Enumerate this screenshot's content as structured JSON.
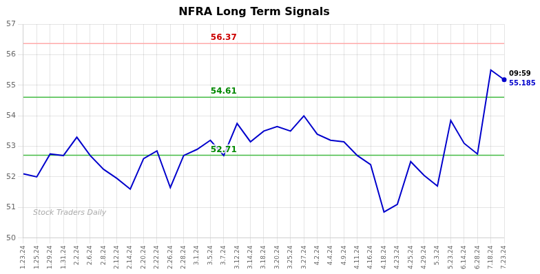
{
  "chart_data": {
    "type": "line",
    "title": "NFRA Long Term Signals",
    "categories": [
      "1.23.24",
      "1.25.24",
      "1.29.24",
      "1.31.24",
      "2.2.24",
      "2.6.24",
      "2.8.24",
      "2.12.24",
      "2.14.24",
      "2.20.24",
      "2.22.24",
      "2.26.24",
      "2.28.24",
      "3.1.24",
      "3.5.24",
      "3.7.24",
      "3.12.24",
      "3.14.24",
      "3.18.24",
      "3.20.24",
      "3.25.24",
      "3.27.24",
      "4.2.24",
      "4.4.24",
      "4.9.24",
      "4.11.24",
      "4.16.24",
      "4.18.24",
      "4.23.24",
      "4.25.24",
      "4.29.24",
      "5.3.24",
      "5.23.24",
      "6.14.24",
      "6.28.24",
      "7.18.24",
      "7.23.24"
    ],
    "values": [
      52.1,
      52.0,
      52.75,
      52.7,
      53.3,
      52.7,
      52.25,
      51.95,
      51.6,
      52.6,
      52.85,
      51.65,
      52.7,
      52.9,
      53.2,
      52.7,
      53.75,
      53.15,
      53.5,
      53.65,
      53.5,
      54.0,
      53.4,
      53.2,
      53.15,
      52.7,
      52.4,
      50.85,
      51.1,
      52.5,
      52.05,
      51.7,
      53.85,
      53.1,
      52.75,
      55.5,
      55.185
    ],
    "color": "#0000cc",
    "ylim": [
      50,
      57
    ],
    "yticks": [
      50,
      51,
      52,
      53,
      54,
      55,
      56,
      57
    ],
    "grid": true,
    "reference_lines": [
      {
        "value": 56.37,
        "label": "56.37",
        "color": "#ffaaaa",
        "label_color": "#cc0000",
        "x": "3.7.24"
      },
      {
        "value": 54.61,
        "label": "54.61",
        "color": "#44bb44",
        "label_color": "#008800",
        "x": "3.7.24"
      },
      {
        "value": 52.71,
        "label": "52.71",
        "color": "#44bb44",
        "label_color": "#008800",
        "x": "3.7.24"
      }
    ],
    "annotations": [
      {
        "text": "09:59",
        "x": "7.23.24",
        "y": 55.185,
        "color": "#000000"
      },
      {
        "text": "55.185",
        "x": "7.23.24",
        "y": 55.185,
        "color": "#0000cc",
        "marker": "circle"
      },
      {
        "text": "Stock Traders Daily",
        "color": "#aaaaaa"
      }
    ]
  }
}
